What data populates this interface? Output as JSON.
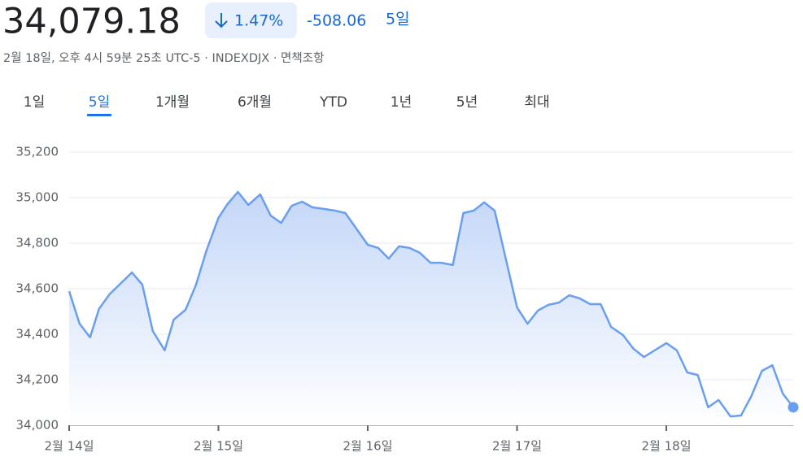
{
  "header": {
    "price": "34,079.18",
    "change_percent": "1.47%",
    "change_value": "-508.06",
    "change_period": "5일",
    "info": "2월 18일, 오후 4시 59분 25초 UTC-5 · INDEXDJX · 면책조항"
  },
  "tabs": {
    "items": [
      "1일",
      "5일",
      "1개월",
      "6개월",
      "YTD",
      "1년",
      "5년",
      "최대"
    ],
    "active": "5일"
  },
  "chart_data": {
    "type": "line",
    "color": "#6a9ef0",
    "x": [
      0,
      0.07,
      0.14,
      0.2,
      0.27,
      0.42,
      0.49,
      0.56,
      0.64,
      0.7,
      0.78,
      0.85,
      0.92,
      1,
      1.06,
      1.13,
      1.2,
      1.28,
      1.35,
      1.42,
      1.49,
      1.56,
      1.63,
      1.71,
      1.78,
      1.85,
      2,
      2.07,
      2.14,
      2.21,
      2.28,
      2.35,
      2.42,
      2.49,
      2.57,
      2.64,
      2.71,
      2.78,
      2.85,
      3,
      3.07,
      3.14,
      3.21,
      3.28,
      3.35,
      3.42,
      3.49,
      3.56,
      3.63,
      3.71,
      3.78,
      3.85,
      4,
      4.07,
      4.14,
      4.21,
      4.28,
      4.35,
      4.43,
      4.5,
      4.57,
      4.64,
      4.71,
      4.78,
      4.85
    ],
    "values": [
      34589,
      34446,
      34386,
      34511,
      34575,
      34671,
      34618,
      34414,
      34329,
      34464,
      34507,
      34618,
      34768,
      34911,
      34971,
      35025,
      34968,
      35014,
      34921,
      34889,
      34964,
      34982,
      34957,
      34950,
      34943,
      34932,
      34793,
      34779,
      34732,
      34786,
      34779,
      34757,
      34714,
      34714,
      34704,
      34932,
      34943,
      34979,
      34943,
      34518,
      34446,
      34504,
      34529,
      34539,
      34571,
      34557,
      34532,
      34532,
      34432,
      34396,
      34336,
      34300,
      34361,
      34329,
      34232,
      34221,
      34079,
      34111,
      34039,
      34043,
      34129,
      34239,
      34264,
      34139,
      34079.18
    ],
    "xlim": [
      0,
      4.85
    ],
    "ylim": [
      34000,
      35200
    ],
    "xticks": [
      {
        "value": 0,
        "label": "2월 14일"
      },
      {
        "value": 1,
        "label": "2월 15일"
      },
      {
        "value": 2,
        "label": "2월 16일"
      },
      {
        "value": 3,
        "label": "2월 17일"
      },
      {
        "value": 4,
        "label": "2월 18일"
      }
    ],
    "yticks": [
      {
        "value": 34000,
        "label": "34,000"
      },
      {
        "value": 34200,
        "label": "34,200"
      },
      {
        "value": 34400,
        "label": "34,400"
      },
      {
        "value": 34600,
        "label": "34,600"
      },
      {
        "value": 34800,
        "label": "34,800"
      },
      {
        "value": 35000,
        "label": "35,000"
      },
      {
        "value": 35200,
        "label": "35,200"
      }
    ],
    "grid": true
  }
}
